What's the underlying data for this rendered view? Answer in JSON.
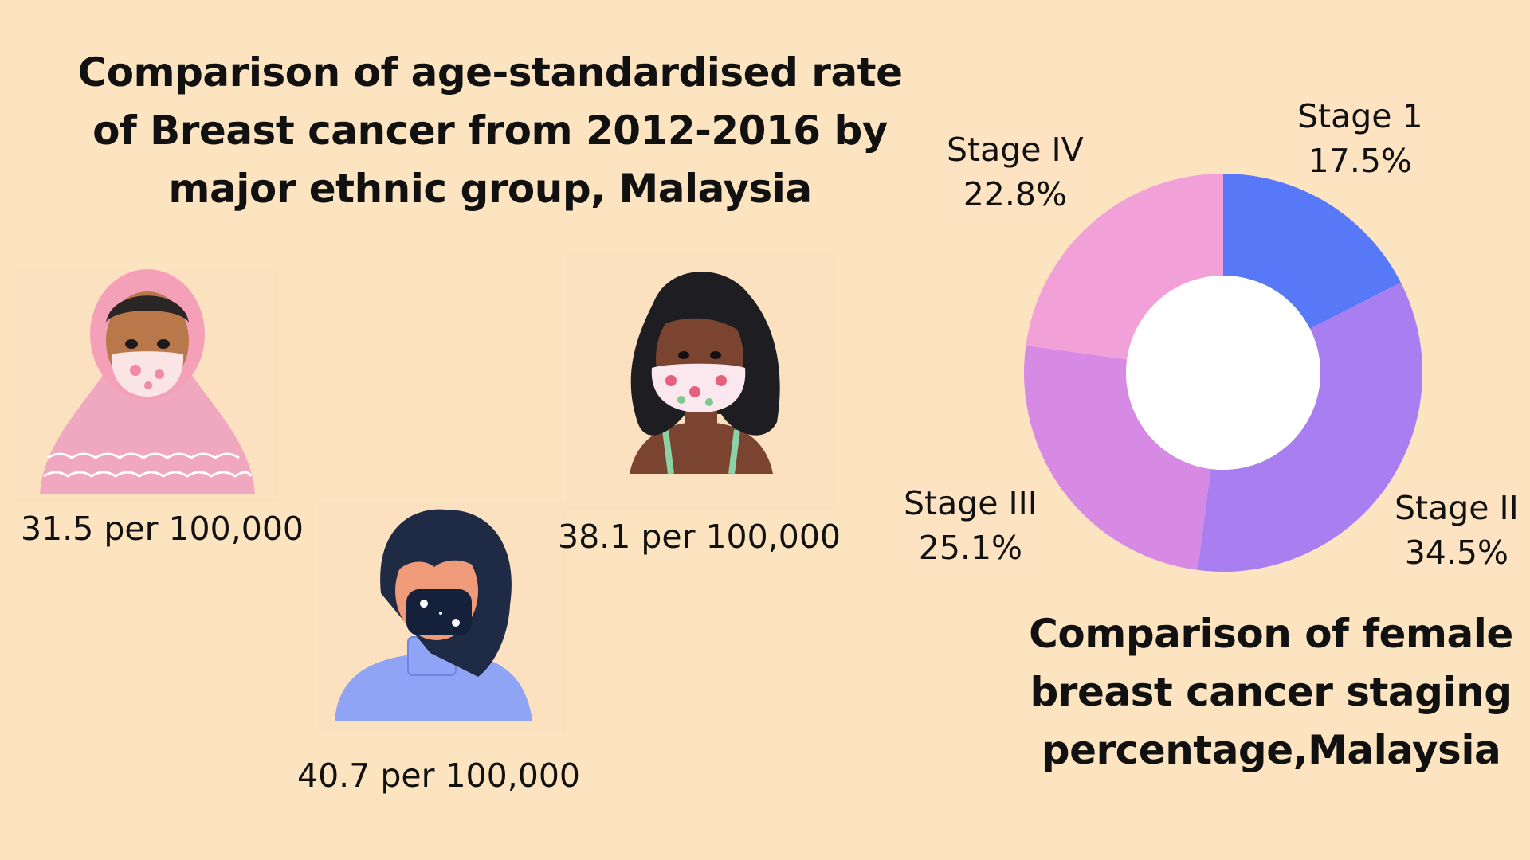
{
  "rates": {
    "title": "Comparison of age-standardised rate of Breast cancer from 2012-2016 by major ethnic group, Malaysia",
    "items": [
      {
        "value": 31.5,
        "label": "31.5 per 100,000",
        "icon": "woman-hijab-mask-icon"
      },
      {
        "value": 40.7,
        "label": "40.7 per 100,000",
        "icon": "woman-short-hair-mask-icon"
      },
      {
        "value": 38.1,
        "label": "38.1 per 100,000",
        "icon": "woman-curly-hair-mask-icon"
      }
    ]
  },
  "chart_data": {
    "type": "pie",
    "title": "Comparison of  female breast cancer staging percentage,Malaysia",
    "categories": [
      "Stage 1",
      "Stage II",
      "Stage III",
      "Stage IV"
    ],
    "values": [
      17.5,
      34.5,
      25.1,
      22.8
    ],
    "value_labels": [
      "17.5%",
      "34.5%",
      "25.1%",
      "22.8%"
    ],
    "colors": [
      "#5779f7",
      "#a87ef0",
      "#d68ae4",
      "#f2a0d8"
    ],
    "donut": true
  }
}
